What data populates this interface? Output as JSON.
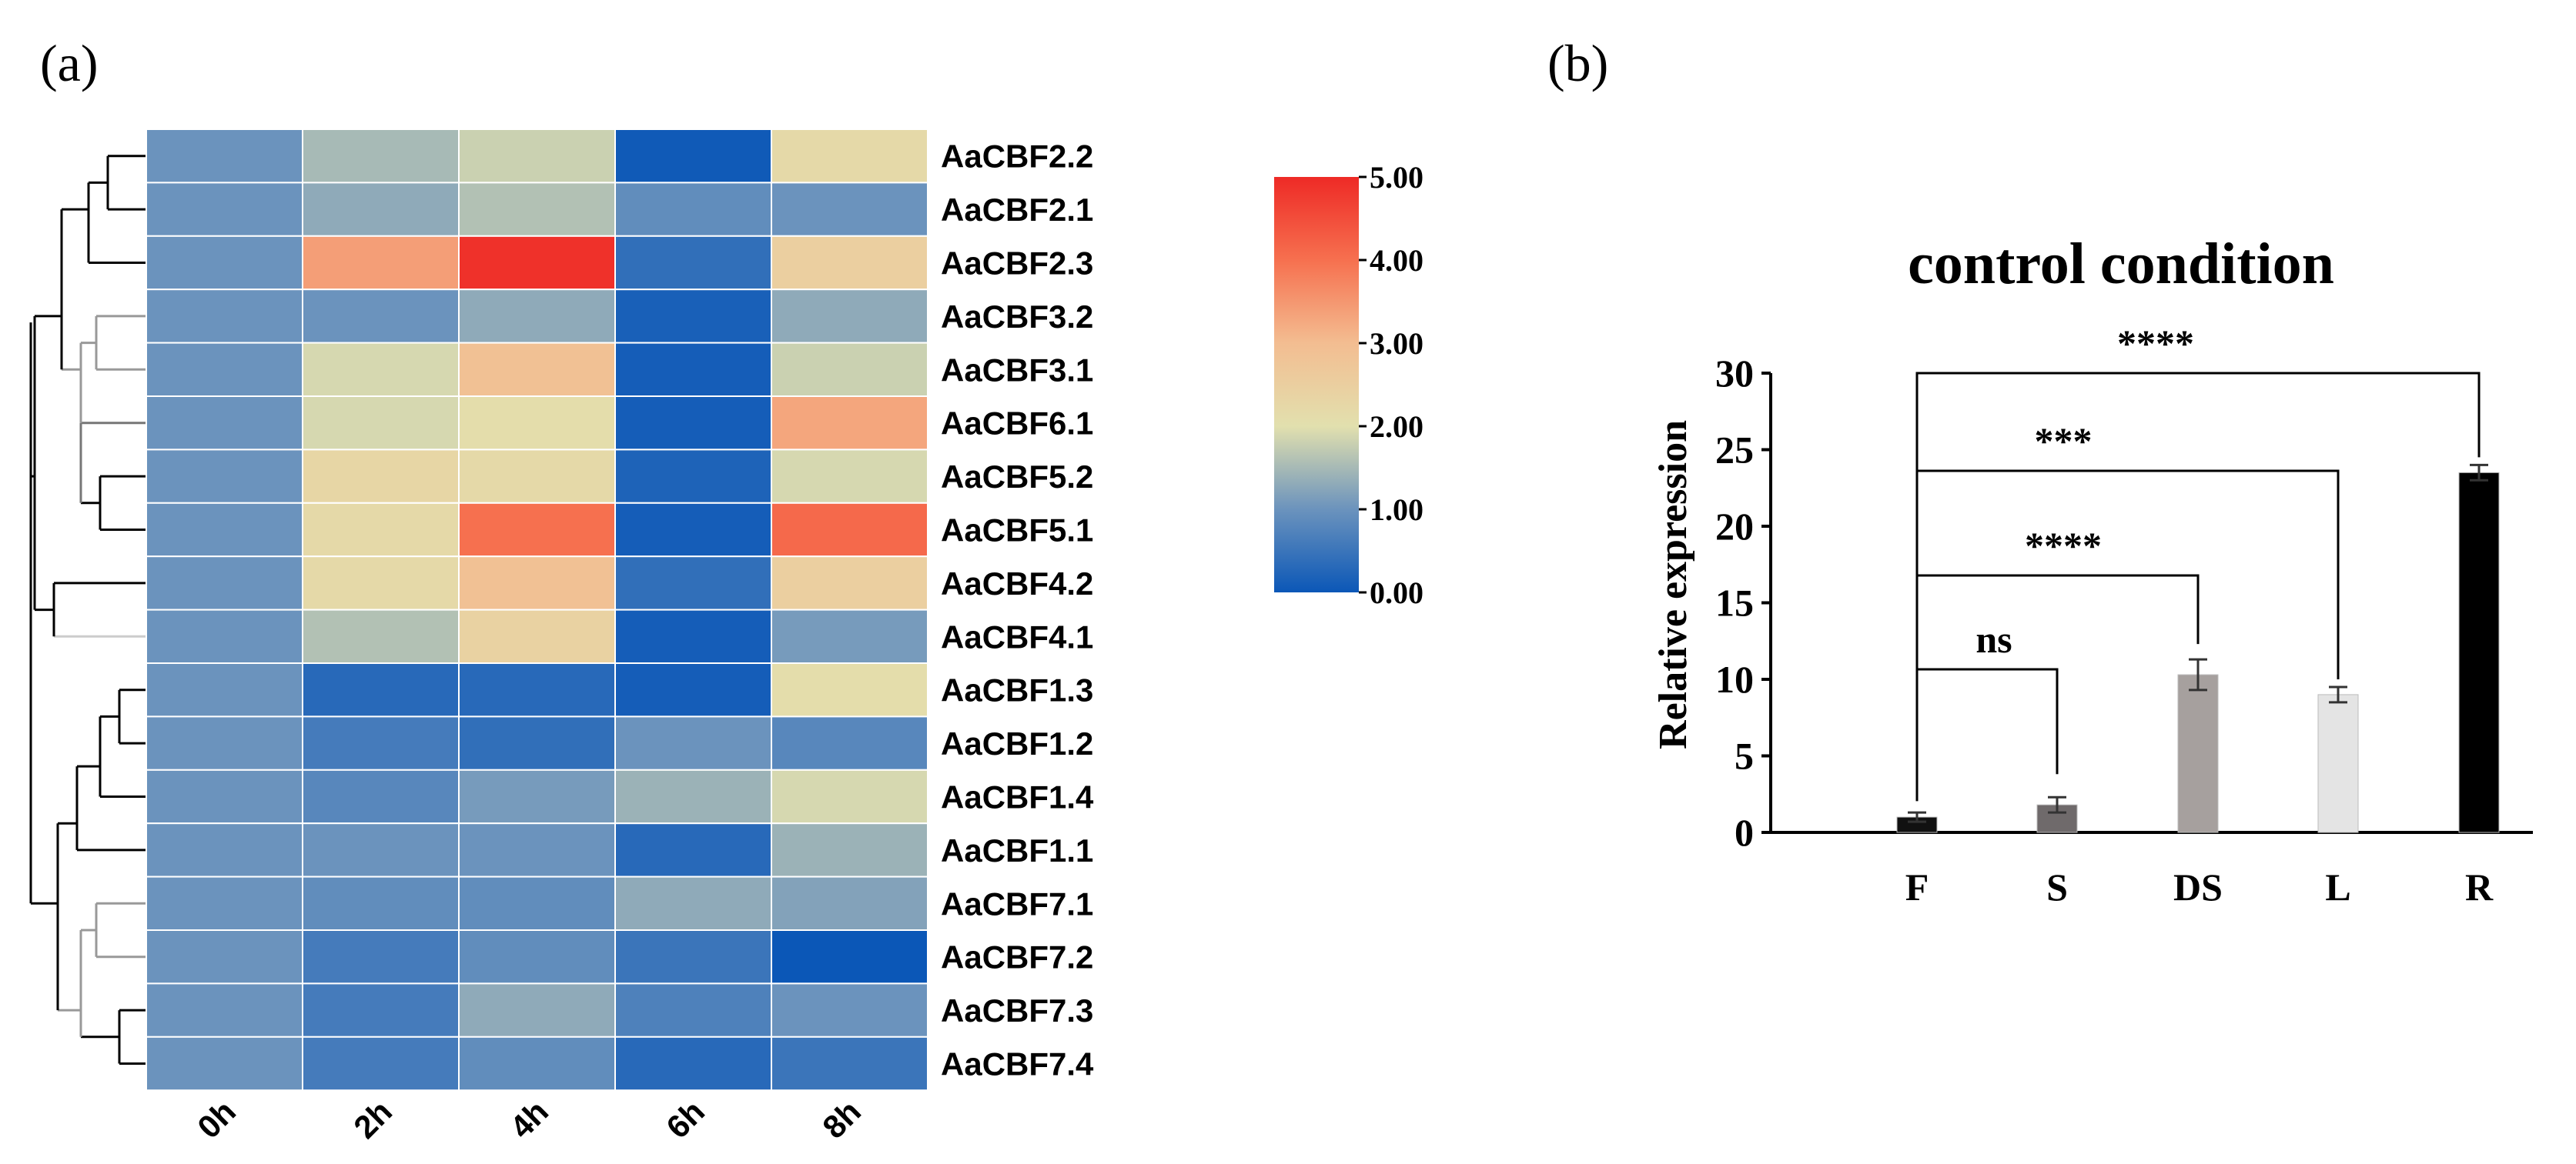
{
  "panel_labels": {
    "a": "(a)",
    "b": "(b)"
  },
  "chart_data": [
    {
      "type": "heatmap",
      "title": "",
      "columns": [
        "0h",
        "2h",
        "4h",
        "6h",
        "8h"
      ],
      "rows": [
        "AaCBF2.2",
        "AaCBF2.1",
        "AaCBF2.3",
        "AaCBF3.2",
        "AaCBF3.1",
        "AaCBF6.1",
        "AaCBF5.2",
        "AaCBF5.1",
        "AaCBF4.2",
        "AaCBF4.1",
        "AaCBF1.3",
        "AaCBF1.2",
        "AaCBF1.4",
        "AaCBF1.1",
        "AaCBF7.1",
        "AaCBF7.2",
        "AaCBF7.3",
        "AaCBF7.4"
      ],
      "values": [
        [
          1.0,
          1.5,
          1.8,
          0.05,
          2.2
        ],
        [
          1.0,
          1.3,
          1.6,
          0.9,
          1.0
        ],
        [
          1.0,
          3.4,
          4.9,
          0.4,
          2.5
        ],
        [
          1.0,
          1.0,
          1.3,
          0.15,
          1.3
        ],
        [
          1.0,
          1.9,
          2.9,
          0.1,
          1.8
        ],
        [
          1.0,
          1.9,
          2.1,
          0.1,
          3.3
        ],
        [
          1.0,
          2.3,
          2.2,
          0.2,
          1.9
        ],
        [
          1.0,
          2.2,
          4.0,
          0.1,
          4.1
        ],
        [
          1.0,
          2.2,
          2.9,
          0.4,
          2.5
        ],
        [
          1.0,
          1.6,
          2.4,
          0.1,
          1.1
        ],
        [
          1.0,
          0.3,
          0.3,
          0.1,
          2.1
        ],
        [
          1.0,
          0.6,
          0.4,
          1.0,
          0.8
        ],
        [
          1.0,
          0.8,
          1.1,
          1.4,
          1.9
        ],
        [
          1.0,
          1.0,
          1.0,
          0.3,
          1.4
        ],
        [
          1.0,
          0.9,
          0.9,
          1.3,
          1.2
        ],
        [
          1.0,
          0.6,
          0.9,
          0.5,
          0.0
        ],
        [
          1.0,
          0.6,
          1.3,
          0.7,
          1.0
        ],
        [
          1.0,
          0.6,
          0.9,
          0.3,
          0.5
        ]
      ],
      "colorbar": {
        "min": 0,
        "max": 5,
        "tick_labels": [
          "5.00",
          "4.00",
          "3.00",
          "2.00",
          "1.00",
          "0.00"
        ],
        "stops": [
          {
            "v": 0,
            "color": "#0b57b7"
          },
          {
            "v": 1,
            "color": "#6b93bd"
          },
          {
            "v": 2,
            "color": "#e2e0ae"
          },
          {
            "v": 3,
            "color": "#f3bd91"
          },
          {
            "v": 4,
            "color": "#f6704f"
          },
          {
            "v": 5,
            "color": "#ee2a26"
          }
        ]
      },
      "legend": "right"
    },
    {
      "type": "bar",
      "title": "control condition",
      "xlabel": "",
      "ylabel": "Relative expression",
      "categories": [
        "F",
        "S",
        "DS",
        "L",
        "R"
      ],
      "values": [
        1.0,
        1.8,
        10.3,
        9.0,
        23.5
      ],
      "errors": [
        0.3,
        0.5,
        1.0,
        0.5,
        0.5
      ],
      "colors": [
        "#111111",
        "#6f6a6b",
        "#a6a09e",
        "#e4e4e4",
        "#000000"
      ],
      "ylim": [
        0,
        30
      ],
      "yticks": [
        "0",
        "5",
        "10",
        "15",
        "20",
        "25",
        "30"
      ],
      "significance": [
        {
          "from": "F",
          "to": "S",
          "label": "ns"
        },
        {
          "from": "F",
          "to": "DS",
          "label": "****"
        },
        {
          "from": "F",
          "to": "L",
          "label": "***"
        },
        {
          "from": "F",
          "to": "R",
          "label": "****"
        }
      ]
    }
  ]
}
